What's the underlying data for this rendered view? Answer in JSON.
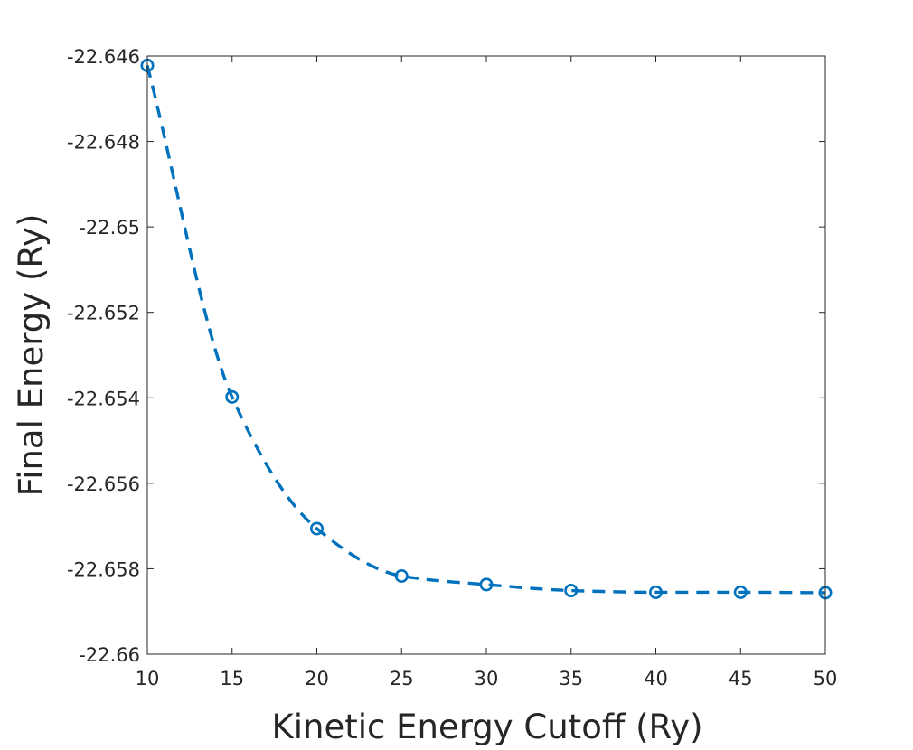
{
  "chart_data": {
    "type": "line",
    "title": "",
    "xlabel": "Kinetic Energy Cutoff (Ry)",
    "ylabel": "Final Energy (Ry)",
    "xlim": [
      10,
      50
    ],
    "ylim": [
      -22.66,
      -22.646
    ],
    "x_ticks": [
      10,
      15,
      20,
      25,
      30,
      35,
      40,
      45,
      50
    ],
    "x_tick_labels": [
      "10",
      "15",
      "20",
      "25",
      "30",
      "35",
      "40",
      "45",
      "50"
    ],
    "y_ticks": [
      -22.646,
      -22.648,
      -22.65,
      -22.652,
      -22.654,
      -22.656,
      -22.658,
      -22.66
    ],
    "y_tick_labels": [
      "-22.646",
      "-22.648",
      "-22.65",
      "-22.652",
      "-22.654",
      "-22.656",
      "-22.658",
      "-22.66"
    ],
    "grid": false,
    "box": true,
    "series": [
      {
        "x": [
          10,
          15,
          20,
          25,
          30,
          35,
          40,
          45,
          50
        ],
        "values": [
          -22.64622,
          -22.65398,
          -22.65706,
          -22.65817,
          -22.65837,
          -22.65851,
          -22.65855,
          -22.65855,
          -22.65856
        ],
        "color": "#0072BD",
        "line_style": "dashed",
        "marker": "circle"
      }
    ]
  }
}
